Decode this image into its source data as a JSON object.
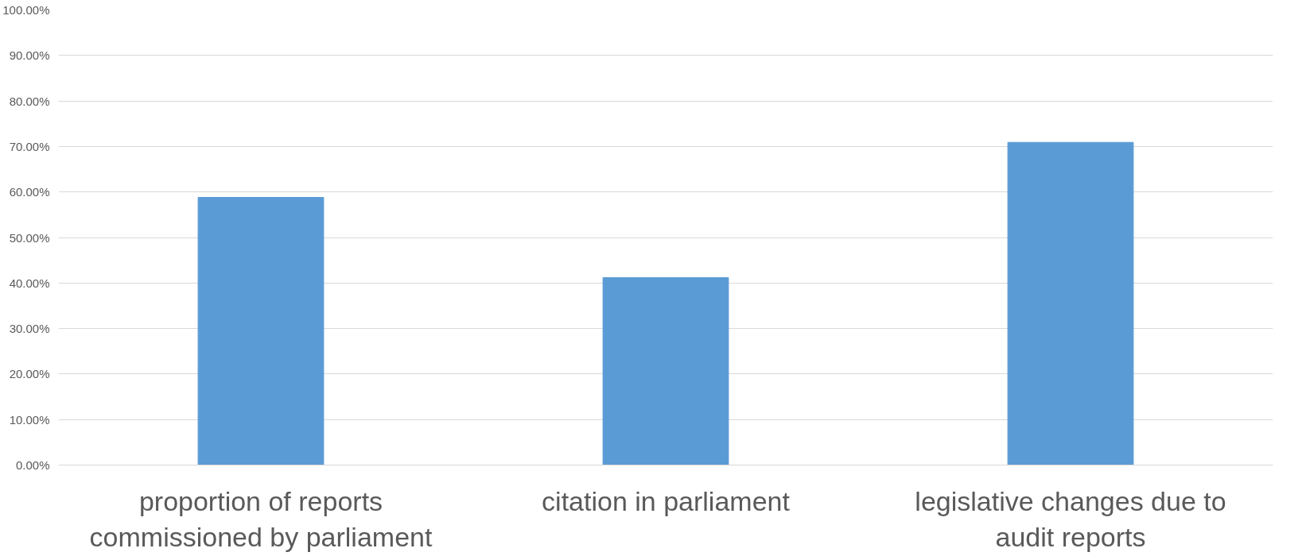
{
  "chart_data": {
    "type": "bar",
    "categories": [
      "proportion of reports commissioned by parliament",
      "citation in parliament",
      "legislative changes due to audit reports"
    ],
    "values": [
      58.8,
      41.2,
      70.9
    ],
    "color": "#5b9bd5",
    "ylim": [
      0,
      100
    ],
    "yticks": [
      {
        "value": 0,
        "label": "0.00%"
      },
      {
        "value": 10,
        "label": "10.00%"
      },
      {
        "value": 20,
        "label": "20.00%"
      },
      {
        "value": 30,
        "label": "30.00%"
      },
      {
        "value": 40,
        "label": "40.00%"
      },
      {
        "value": 50,
        "label": "50.00%"
      },
      {
        "value": 60,
        "label": "60.00%"
      },
      {
        "value": 70,
        "label": "70.00%"
      },
      {
        "value": 80,
        "label": "80.00%"
      },
      {
        "value": 90,
        "label": "90.00%"
      },
      {
        "value": 100,
        "label": "100.00%"
      }
    ],
    "grid": "y"
  }
}
